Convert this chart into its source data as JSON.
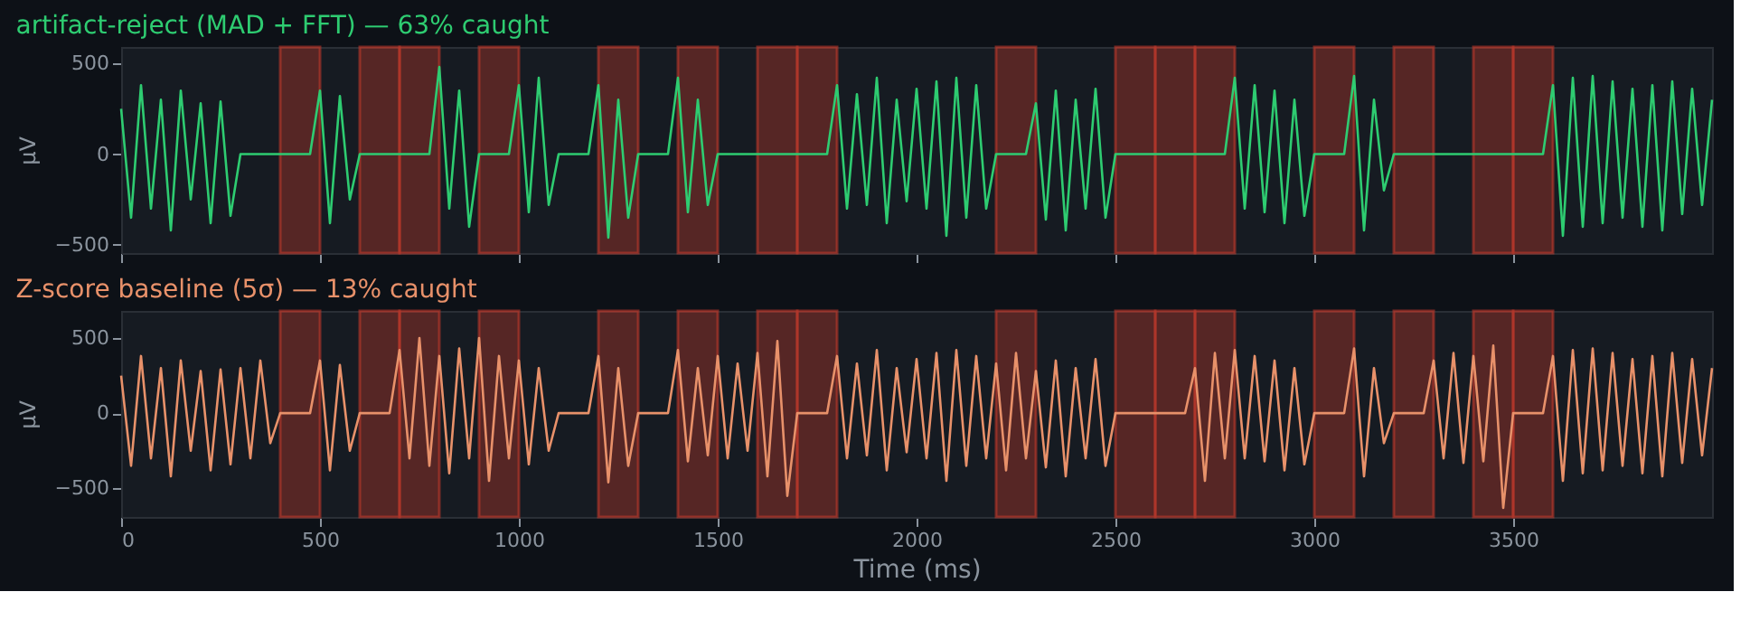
{
  "chart_data": [
    {
      "type": "line",
      "title": "artifact-reject (MAD + FFT)  —  63% caught",
      "ylabel": "µV",
      "tick_labels": "y",
      "xlim": [
        0,
        4000
      ],
      "ylim": [
        -545,
        590
      ],
      "xticks": [
        0,
        500,
        1000,
        1500,
        2000,
        2500,
        3000,
        3500
      ],
      "yticks": [
        -500,
        0,
        500
      ],
      "x": [
        0,
        25,
        50,
        75,
        100,
        125,
        150,
        175,
        200,
        225,
        250,
        275,
        300,
        325,
        350,
        375,
        400,
        425,
        450,
        475,
        500,
        525,
        550,
        575,
        600,
        625,
        650,
        675,
        700,
        725,
        750,
        775,
        800,
        825,
        850,
        875,
        900,
        925,
        950,
        975,
        1000,
        1025,
        1050,
        1075,
        1100,
        1125,
        1150,
        1175,
        1200,
        1225,
        1250,
        1275,
        1300,
        1325,
        1350,
        1375,
        1400,
        1425,
        1450,
        1475,
        1500,
        1525,
        1550,
        1575,
        1600,
        1625,
        1650,
        1675,
        1700,
        1725,
        1750,
        1775,
        1800,
        1825,
        1850,
        1875,
        1900,
        1925,
        1950,
        1975,
        2000,
        2025,
        2050,
        2075,
        2100,
        2125,
        2150,
        2175,
        2200,
        2225,
        2250,
        2275,
        2300,
        2325,
        2350,
        2375,
        2400,
        2425,
        2450,
        2475,
        2500,
        2525,
        2550,
        2575,
        2600,
        2625,
        2650,
        2675,
        2700,
        2725,
        2750,
        2775,
        2800,
        2825,
        2850,
        2875,
        2900,
        2925,
        2950,
        2975,
        3000,
        3025,
        3050,
        3075,
        3100,
        3125,
        3150,
        3175,
        3200,
        3225,
        3250,
        3275,
        3300,
        3325,
        3350,
        3375,
        3400,
        3425,
        3450,
        3475,
        3500,
        3525,
        3550,
        3575,
        3600,
        3625,
        3650,
        3675,
        3700,
        3725,
        3750,
        3775,
        3800,
        3825,
        3850,
        3875,
        3900,
        3925,
        3950,
        3975,
        4000
      ],
      "series": [
        {
          "color": "#2ecc71",
          "values": [
            250,
            -350,
            380,
            -300,
            300,
            -420,
            350,
            -250,
            280,
            -380,
            290,
            -340,
            0,
            0,
            0,
            0,
            0,
            0,
            0,
            0,
            350,
            -380,
            320,
            -250,
            0,
            0,
            0,
            0,
            0,
            0,
            0,
            0,
            480,
            -300,
            350,
            -400,
            0,
            0,
            0,
            0,
            380,
            -320,
            420,
            -280,
            0,
            0,
            0,
            0,
            380,
            -460,
            300,
            -350,
            0,
            0,
            0,
            0,
            420,
            -320,
            300,
            -280,
            0,
            0,
            0,
            0,
            0,
            0,
            0,
            0,
            0,
            0,
            0,
            0,
            380,
            -300,
            330,
            -280,
            420,
            -380,
            300,
            -260,
            360,
            -300,
            400,
            -450,
            420,
            -350,
            380,
            -300,
            0,
            0,
            0,
            0,
            280,
            -360,
            350,
            -420,
            300,
            -300,
            360,
            -350,
            0,
            0,
            0,
            0,
            0,
            0,
            0,
            0,
            0,
            0,
            0,
            0,
            420,
            -300,
            380,
            -320,
            350,
            -380,
            300,
            -340,
            0,
            0,
            0,
            0,
            430,
            -420,
            300,
            -200,
            0,
            0,
            0,
            0,
            0,
            0,
            0,
            0,
            0,
            0,
            0,
            0,
            0,
            0,
            0,
            0,
            380,
            -450,
            420,
            -400,
            430,
            -380,
            400,
            -350,
            360,
            -400,
            380,
            -420,
            400,
            -330,
            360,
            -280,
            300
          ]
        }
      ],
      "bands": [
        {
          "axis": "x",
          "from": 400,
          "to": 500,
          "color": "#c0392b"
        },
        {
          "axis": "x",
          "from": 600,
          "to": 700,
          "color": "#c0392b"
        },
        {
          "axis": "x",
          "from": 700,
          "to": 800,
          "color": "#c0392b"
        },
        {
          "axis": "x",
          "from": 900,
          "to": 1000,
          "color": "#c0392b"
        },
        {
          "axis": "x",
          "from": 1200,
          "to": 1300,
          "color": "#c0392b"
        },
        {
          "axis": "x",
          "from": 1400,
          "to": 1500,
          "color": "#c0392b"
        },
        {
          "axis": "x",
          "from": 1600,
          "to": 1700,
          "color": "#c0392b"
        },
        {
          "axis": "x",
          "from": 1700,
          "to": 1800,
          "color": "#c0392b"
        },
        {
          "axis": "x",
          "from": 2200,
          "to": 2300,
          "color": "#c0392b"
        },
        {
          "axis": "x",
          "from": 2500,
          "to": 2600,
          "color": "#c0392b"
        },
        {
          "axis": "x",
          "from": 2600,
          "to": 2700,
          "color": "#c0392b"
        },
        {
          "axis": "x",
          "from": 2700,
          "to": 2800,
          "color": "#c0392b"
        },
        {
          "axis": "x",
          "from": 3000,
          "to": 3100,
          "color": "#c0392b"
        },
        {
          "axis": "x",
          "from": 3200,
          "to": 3300,
          "color": "#c0392b"
        },
        {
          "axis": "x",
          "from": 3400,
          "to": 3500,
          "color": "#c0392b"
        },
        {
          "axis": "x",
          "from": 3500,
          "to": 3600,
          "color": "#c0392b"
        }
      ]
    },
    {
      "type": "line",
      "title": "Z-score baseline (5σ)  —  13% caught",
      "ylabel": "µV",
      "xlabel": "Time (ms)",
      "xlim": [
        0,
        4000
      ],
      "ylim": [
        -690,
        680
      ],
      "xticks": [
        0,
        500,
        1000,
        1500,
        2000,
        2500,
        3000,
        3500
      ],
      "yticks": [
        -500,
        0,
        500
      ],
      "x": [
        0,
        25,
        50,
        75,
        100,
        125,
        150,
        175,
        200,
        225,
        250,
        275,
        300,
        325,
        350,
        375,
        400,
        425,
        450,
        475,
        500,
        525,
        550,
        575,
        600,
        625,
        650,
        675,
        700,
        725,
        750,
        775,
        800,
        825,
        850,
        875,
        900,
        925,
        950,
        975,
        1000,
        1025,
        1050,
        1075,
        1100,
        1125,
        1150,
        1175,
        1200,
        1225,
        1250,
        1275,
        1300,
        1325,
        1350,
        1375,
        1400,
        1425,
        1450,
        1475,
        1500,
        1525,
        1550,
        1575,
        1600,
        1625,
        1650,
        1675,
        1700,
        1725,
        1750,
        1775,
        1800,
        1825,
        1850,
        1875,
        1900,
        1925,
        1950,
        1975,
        2000,
        2025,
        2050,
        2075,
        2100,
        2125,
        2150,
        2175,
        2200,
        2225,
        2250,
        2275,
        2300,
        2325,
        2350,
        2375,
        2400,
        2425,
        2450,
        2475,
        2500,
        2525,
        2550,
        2575,
        2600,
        2625,
        2650,
        2675,
        2700,
        2725,
        2750,
        2775,
        2800,
        2825,
        2850,
        2875,
        2900,
        2925,
        2950,
        2975,
        3000,
        3025,
        3050,
        3075,
        3100,
        3125,
        3150,
        3175,
        3200,
        3225,
        3250,
        3275,
        3300,
        3325,
        3350,
        3375,
        3400,
        3425,
        3450,
        3475,
        3500,
        3525,
        3550,
        3575,
        3600,
        3625,
        3650,
        3675,
        3700,
        3725,
        3750,
        3775,
        3800,
        3825,
        3850,
        3875,
        3900,
        3925,
        3950,
        3975,
        4000
      ],
      "series": [
        {
          "color": "#e8916a",
          "values": [
            250,
            -350,
            380,
            -300,
            300,
            -420,
            350,
            -250,
            280,
            -380,
            290,
            -340,
            300,
            -300,
            350,
            -200,
            0,
            0,
            0,
            0,
            350,
            -380,
            320,
            -250,
            0,
            0,
            0,
            0,
            420,
            -300,
            500,
            -350,
            380,
            -400,
            430,
            -300,
            500,
            -450,
            380,
            -300,
            350,
            -340,
            300,
            -250,
            0,
            0,
            0,
            0,
            380,
            -460,
            300,
            -350,
            0,
            0,
            0,
            0,
            420,
            -320,
            300,
            -280,
            380,
            -300,
            330,
            -250,
            400,
            -420,
            480,
            -550,
            0,
            0,
            0,
            0,
            380,
            -300,
            330,
            -280,
            420,
            -380,
            300,
            -260,
            360,
            -300,
            400,
            -450,
            420,
            -350,
            380,
            -300,
            330,
            -380,
            400,
            -300,
            280,
            -360,
            350,
            -420,
            300,
            -300,
            360,
            -350,
            0,
            0,
            0,
            0,
            0,
            0,
            0,
            0,
            300,
            -450,
            400,
            -300,
            420,
            -300,
            380,
            -320,
            350,
            -380,
            300,
            -340,
            0,
            0,
            0,
            0,
            430,
            -420,
            300,
            -200,
            0,
            0,
            0,
            0,
            350,
            -300,
            400,
            -330,
            380,
            -320,
            450,
            -630,
            0,
            0,
            0,
            0,
            380,
            -450,
            420,
            -400,
            430,
            -380,
            400,
            -350,
            360,
            -400,
            380,
            -420,
            400,
            -330,
            360,
            -280,
            300
          ]
        }
      ],
      "bands": [
        {
          "axis": "x",
          "from": 400,
          "to": 500,
          "color": "#c0392b"
        },
        {
          "axis": "x",
          "from": 600,
          "to": 700,
          "color": "#c0392b"
        },
        {
          "axis": "x",
          "from": 700,
          "to": 800,
          "color": "#c0392b"
        },
        {
          "axis": "x",
          "from": 900,
          "to": 1000,
          "color": "#c0392b"
        },
        {
          "axis": "x",
          "from": 1200,
          "to": 1300,
          "color": "#c0392b"
        },
        {
          "axis": "x",
          "from": 1400,
          "to": 1500,
          "color": "#c0392b"
        },
        {
          "axis": "x",
          "from": 1600,
          "to": 1700,
          "color": "#c0392b"
        },
        {
          "axis": "x",
          "from": 1700,
          "to": 1800,
          "color": "#c0392b"
        },
        {
          "axis": "x",
          "from": 2200,
          "to": 2300,
          "color": "#c0392b"
        },
        {
          "axis": "x",
          "from": 2500,
          "to": 2600,
          "color": "#c0392b"
        },
        {
          "axis": "x",
          "from": 2600,
          "to": 2700,
          "color": "#c0392b"
        },
        {
          "axis": "x",
          "from": 2700,
          "to": 2800,
          "color": "#c0392b"
        },
        {
          "axis": "x",
          "from": 3000,
          "to": 3100,
          "color": "#c0392b"
        },
        {
          "axis": "x",
          "from": 3200,
          "to": 3300,
          "color": "#c0392b"
        },
        {
          "axis": "x",
          "from": 3400,
          "to": 3500,
          "color": "#c0392b"
        },
        {
          "axis": "x",
          "from": 3500,
          "to": 3600,
          "color": "#c0392b"
        }
      ]
    }
  ]
}
